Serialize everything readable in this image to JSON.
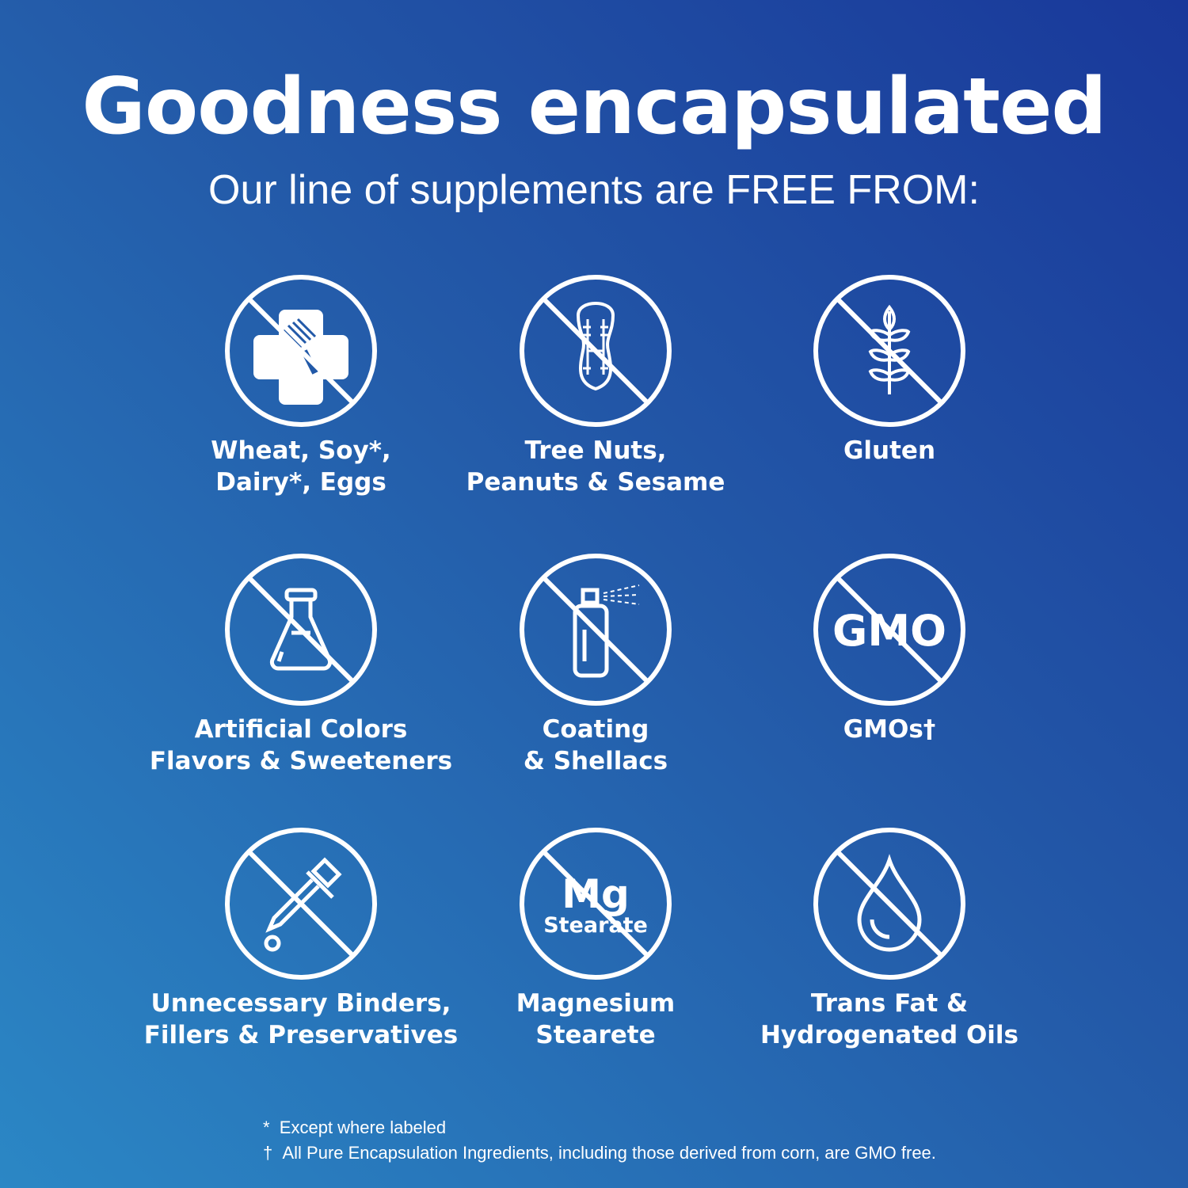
{
  "header": {
    "title": "Goodness encapsulated",
    "subtitle": "Our line of supplements are FREE FROM:"
  },
  "items": [
    {
      "icon": "wheat-soy-dairy-eggs-icon",
      "lines": [
        "Wheat, Soy*,",
        "Dairy*, Eggs"
      ]
    },
    {
      "icon": "peanut-icon",
      "lines": [
        "Tree Nuts,",
        "Peanuts & Sesame"
      ]
    },
    {
      "icon": "wheat-grain-icon",
      "lines": [
        "Gluten"
      ]
    },
    {
      "icon": "flask-icon",
      "lines": [
        "Artificial Colors",
        "Flavors & Sweeteners"
      ]
    },
    {
      "icon": "spray-can-icon",
      "lines": [
        "Coating",
        "& Shellacs"
      ]
    },
    {
      "icon": "gmo-icon",
      "lines": [
        "GMOs†"
      ],
      "icon_text": "GMO"
    },
    {
      "icon": "dropper-icon",
      "lines": [
        "Unnecessary Binders,",
        "Fillers & Preservatives"
      ]
    },
    {
      "icon": "mg-stearate-icon",
      "lines": [
        "Magnesium",
        "Stearete"
      ],
      "icon_text": "Mg",
      "icon_subtext": "Stearate"
    },
    {
      "icon": "oil-drop-icon",
      "lines": [
        "Trans Fat &",
        "Hydrogenated Oils"
      ]
    }
  ],
  "footnotes": [
    {
      "mark": "*",
      "text": "Except where labeled"
    },
    {
      "mark": "†",
      "text": "All Pure Encapsulation Ingredients, including those derived from corn, are GMO free."
    }
  ],
  "colors": {
    "background_top_right": "#19389a",
    "background_bottom_left": "#2b87c5",
    "foreground": "#ffffff"
  }
}
